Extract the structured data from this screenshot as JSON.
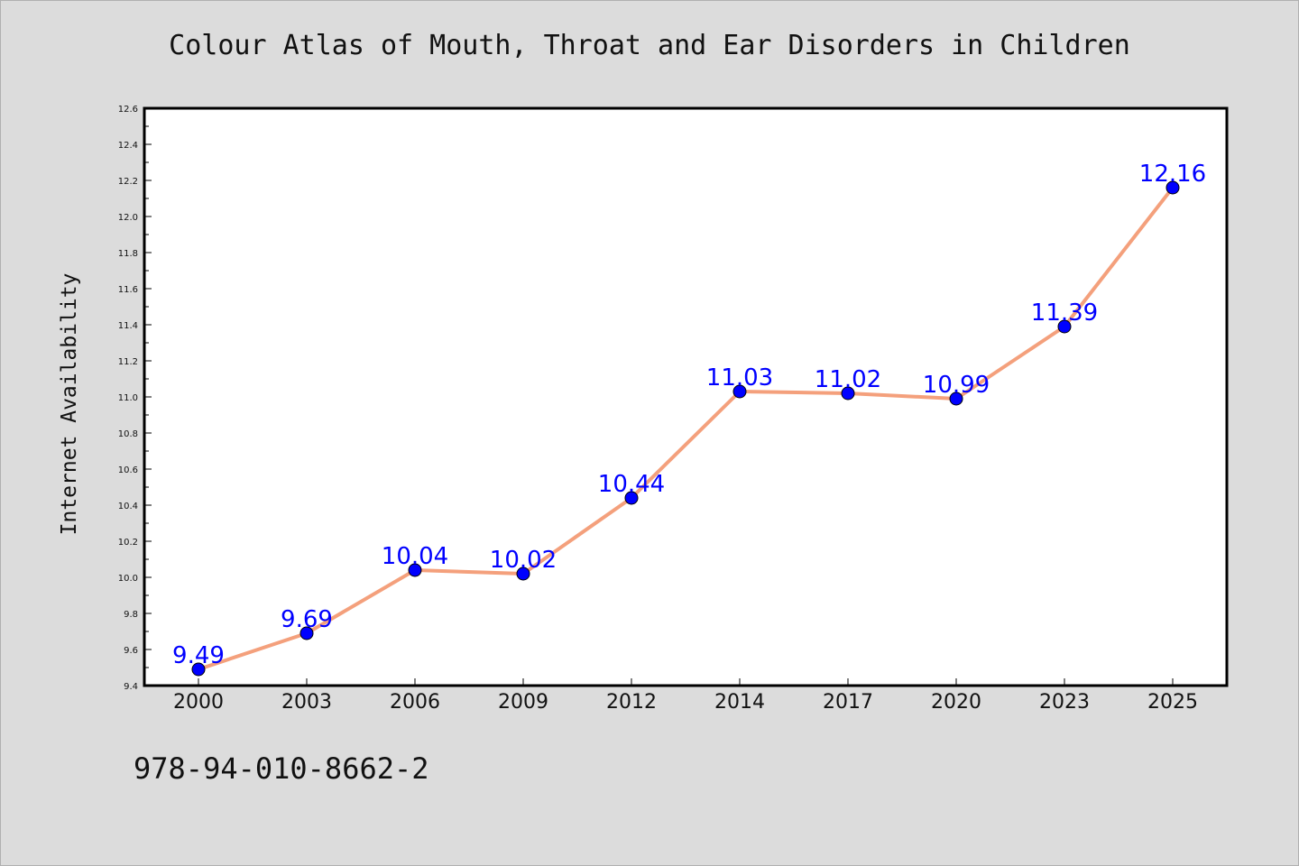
{
  "chart_data": {
    "type": "line",
    "title": "Colour Atlas of Mouth, Throat and Ear Disorders in Children",
    "xlabel": "",
    "ylabel": "Internet Availability",
    "categories": [
      "2000",
      "2003",
      "2006",
      "2009",
      "2012",
      "2014",
      "2017",
      "2020",
      "2023",
      "2025"
    ],
    "series": [
      {
        "values": [
          9.49,
          9.69,
          10.04,
          10.02,
          10.44,
          11.03,
          11.02,
          10.99,
          11.39,
          12.16
        ]
      }
    ],
    "data_labels": [
      "9.49",
      "9.69",
      "10.04",
      "10.02",
      "10.44",
      "11.03",
      "11.02",
      "10.99",
      "11.39",
      "12.16"
    ],
    "ylim": [
      9.4,
      12.6
    ],
    "y_ticks": [
      "9.4",
      "9.6",
      "9.8",
      "10.0",
      "10.2",
      "10.4",
      "10.6",
      "10.8",
      "11.0",
      "11.2",
      "11.4",
      "11.6",
      "11.8",
      "12.0",
      "12.2",
      "12.4",
      "12.6"
    ],
    "grid": false,
    "line_color": "#f4a07c",
    "marker_color": "#0000ff",
    "label_color": "#0000ff",
    "background": "#dcdcdc",
    "plot_background": "#ffffff"
  },
  "footer_text": "978-94-010-8662-2"
}
